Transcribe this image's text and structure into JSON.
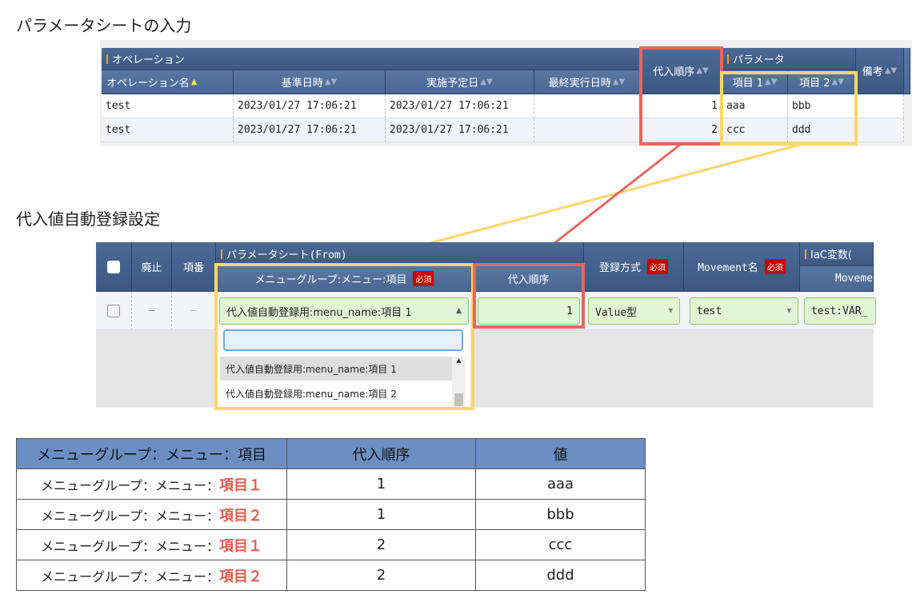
{
  "section1_title": "パラメータシートの入力",
  "section2_title": "代入値自動登録設定",
  "top_table": {
    "group_operation": "オペレーション",
    "group_parameter": "パラメータ",
    "columns": [
      "オペレーション名",
      "基準日時",
      "実施予定日",
      "最終実行日時",
      "代入順序",
      "項目 1",
      "項目 2",
      "備考"
    ],
    "rows": [
      [
        "test",
        "2023/01/27 17:06:21",
        "2023/01/27 17:06:21",
        "",
        "1",
        "aaa",
        "bbb",
        ""
      ],
      [
        "test",
        "2023/01/27 17:06:21",
        "2023/01/27 17:06:21",
        "",
        "2",
        "ccc",
        "ddd",
        ""
      ]
    ]
  },
  "reg_table": {
    "col_discard": "廃止",
    "col_no": "項番",
    "group_param_sheet": "パラメータシート(From)",
    "col_menu_item": "メニューグループ:メニュー:項目",
    "col_order": "代入順序",
    "col_reg_method": "登録方式",
    "col_movement": "Movement名",
    "group_iac": "IaC変数(",
    "col_movement_sub": "Moveme",
    "required": "必須",
    "row": {
      "discard": "—",
      "no": "—",
      "menu_item": "代入値自動登録用:menu_name:項目 1",
      "order": "1",
      "reg_method": "Value型",
      "movement": "test",
      "iac": "test:VAR_"
    },
    "dropdown_search": "",
    "dropdown_options": [
      "代入値自動登録用:menu_name:項目 1",
      "代入値自動登録用:menu_name:項目 2"
    ]
  },
  "result_table": {
    "headers": [
      "メニューグループ：メニュー：項目",
      "代入順序",
      "値"
    ],
    "prefix": "メニューグループ：メニュー：",
    "rows": [
      {
        "item": "項目１",
        "order": "1",
        "value": "aaa"
      },
      {
        "item": "項目２",
        "order": "1",
        "value": "bbb"
      },
      {
        "item": "項目１",
        "order": "2",
        "value": "ccc"
      },
      {
        "item": "項目２",
        "order": "2",
        "value": "ddd"
      }
    ]
  },
  "colors": {
    "red_highlight": "#e8665f",
    "yellow_highlight": "#fcd56a",
    "header_blue": "#45628f"
  }
}
